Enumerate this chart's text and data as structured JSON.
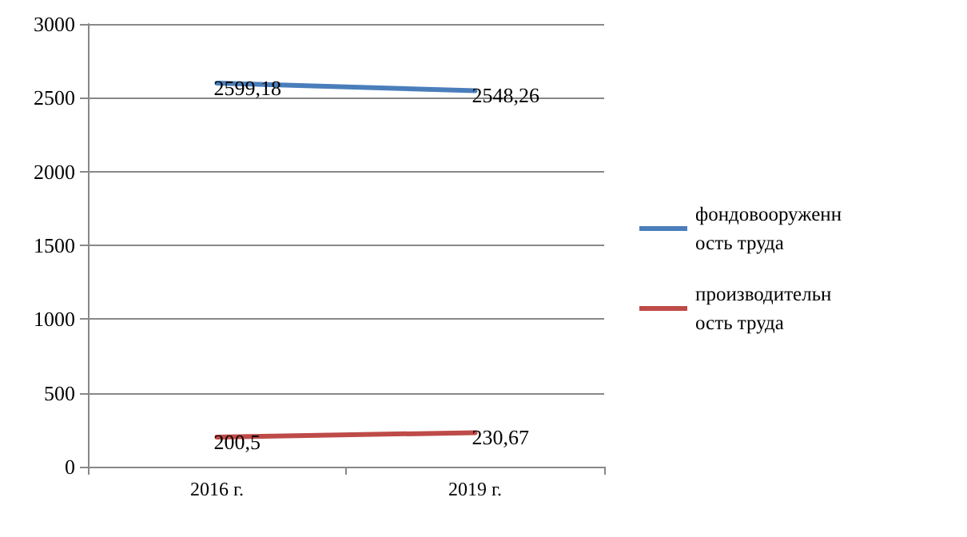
{
  "chart_data": {
    "type": "line",
    "categories": [
      "2016 г.",
      "2019 г."
    ],
    "series": [
      {
        "name": "фондовооруженность труда",
        "color": "#4a7ebb",
        "values": [
          2599.18,
          2548.26
        ],
        "value_labels": [
          "2599,18",
          "2548,26"
        ]
      },
      {
        "name": "производительность труда",
        "color": "#be4b48",
        "values": [
          200.5,
          230.67
        ],
        "value_labels": [
          "200,5",
          "230,67"
        ]
      }
    ],
    "ylim": [
      0,
      3000
    ],
    "yticks": [
      0,
      500,
      1000,
      1500,
      2000,
      2500,
      3000
    ],
    "grid": "y",
    "legend": "right",
    "marker": "none",
    "line_style": "solid"
  }
}
